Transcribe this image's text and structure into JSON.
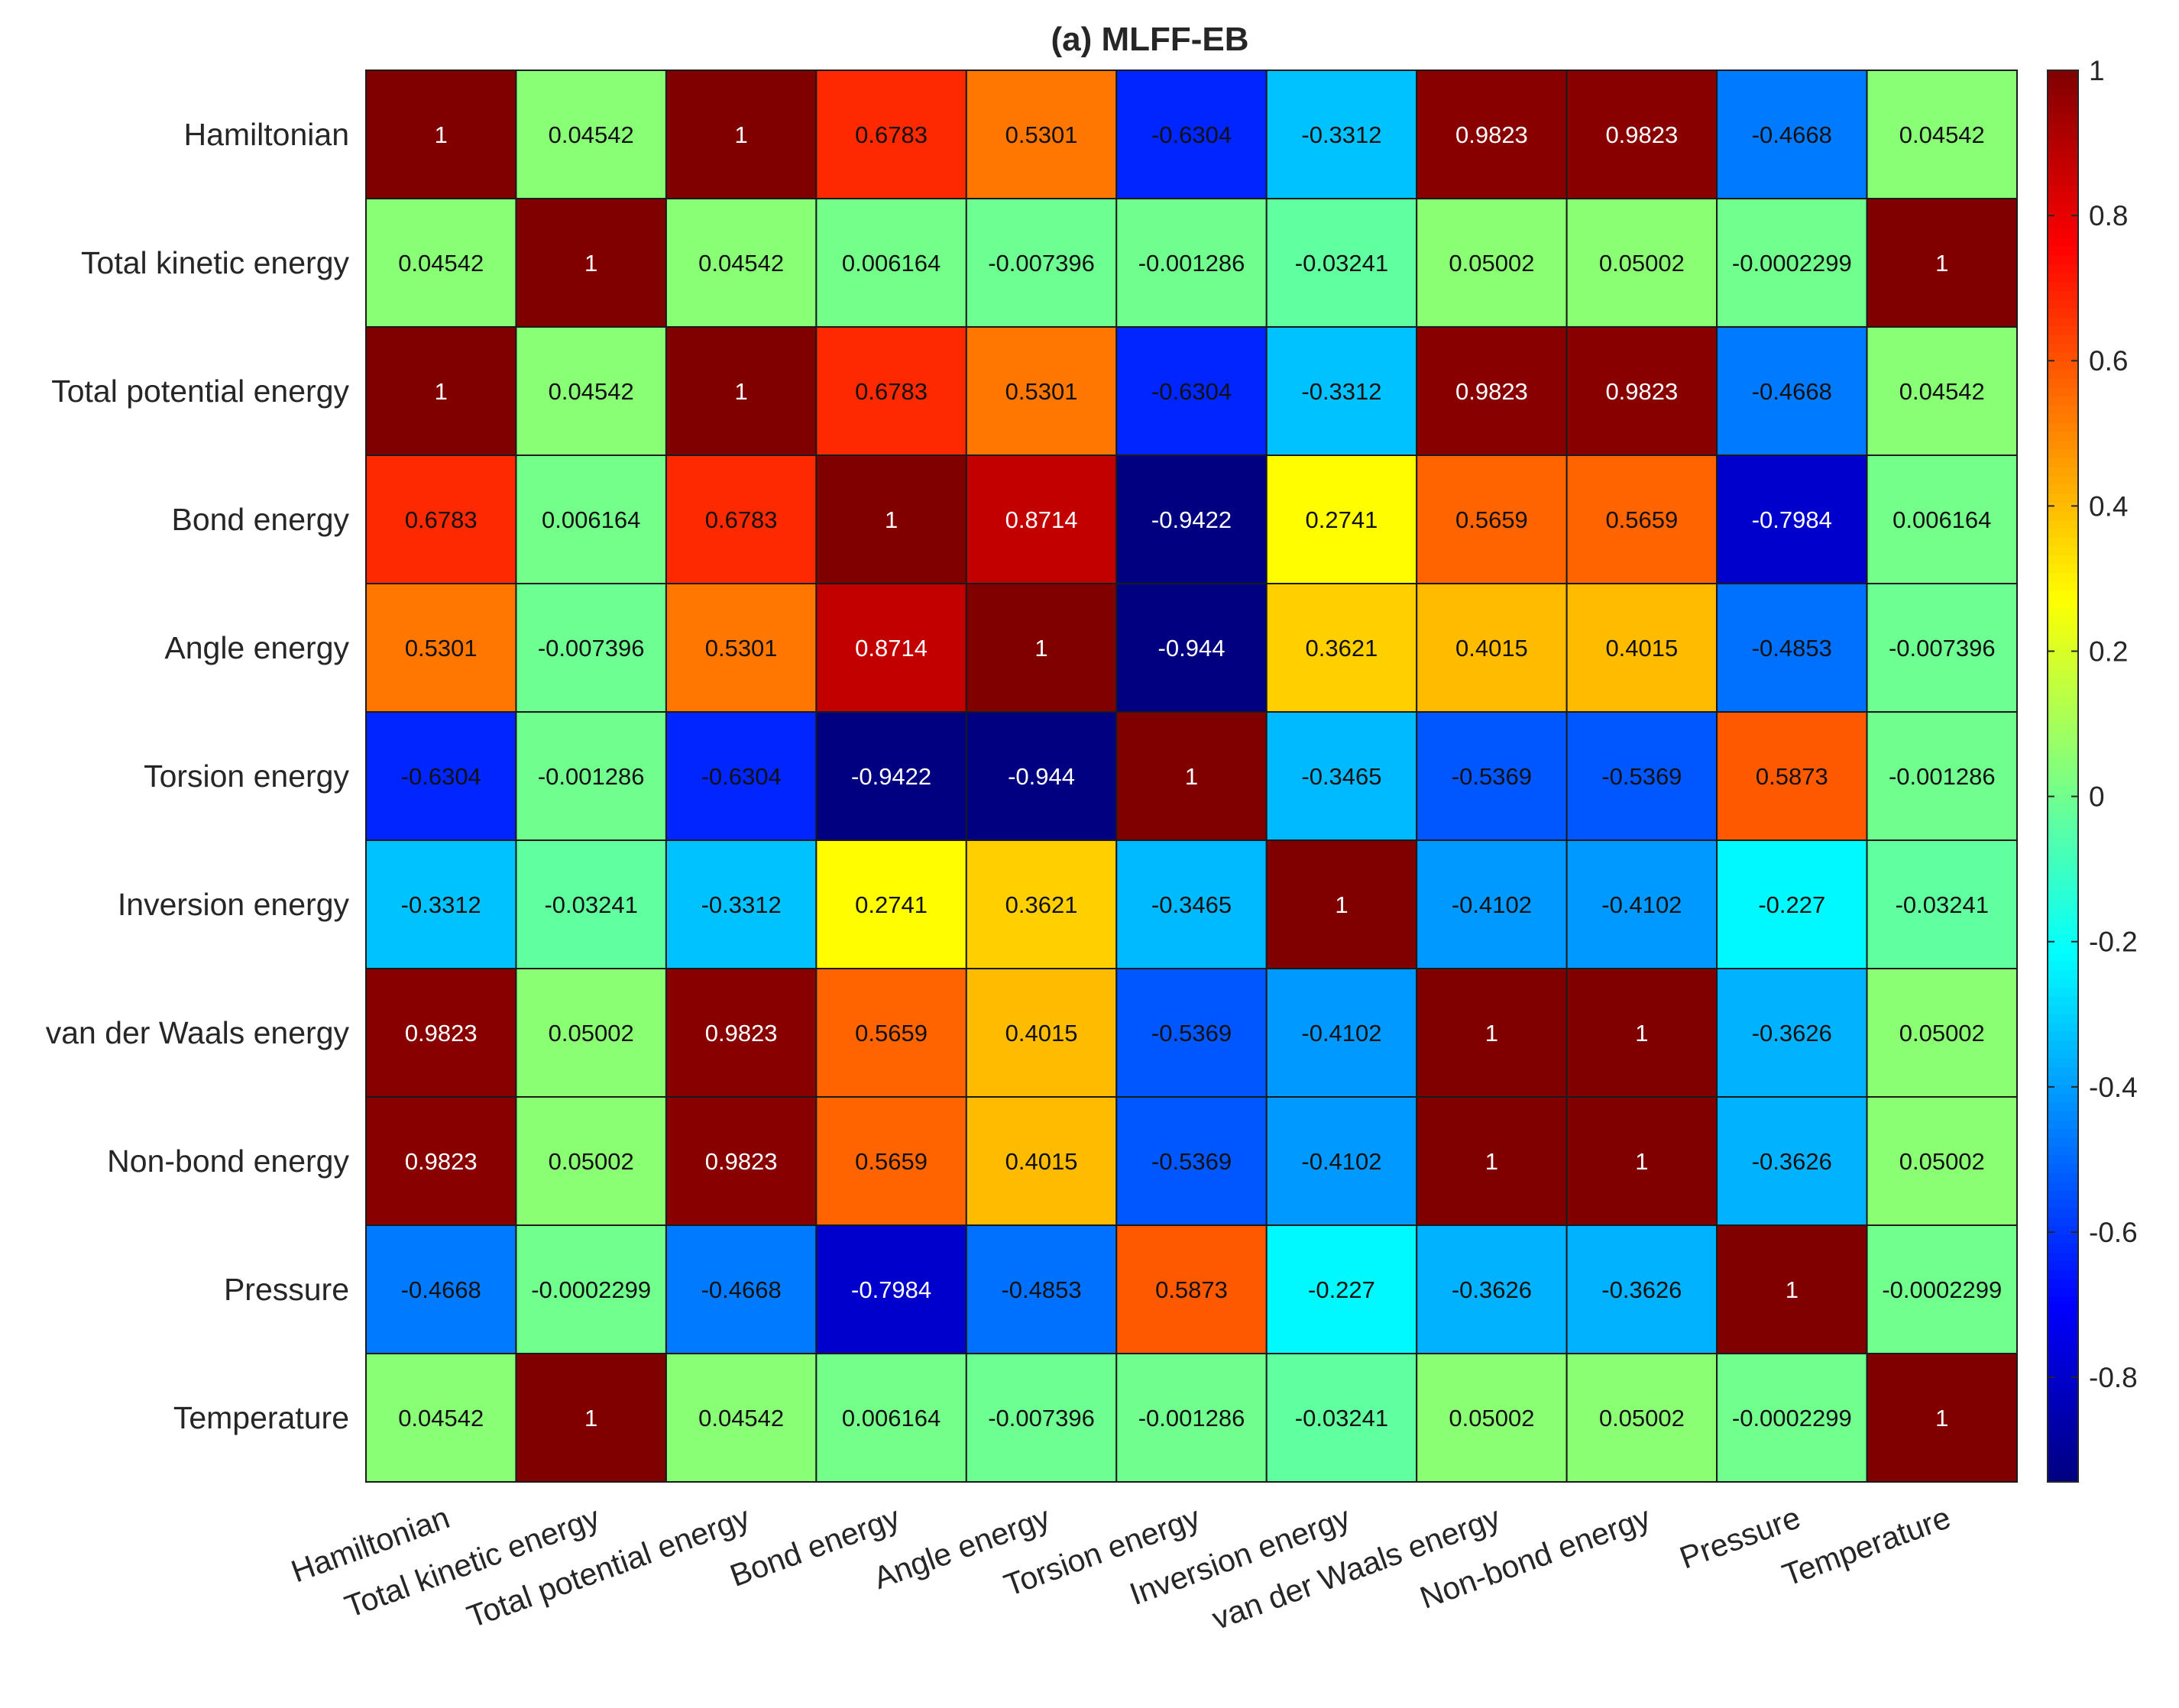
{
  "chart_data": {
    "type": "heatmap",
    "title": "(a) MLFF-EB",
    "rows": [
      "Hamiltonian",
      "Total kinetic energy",
      "Total potential energy",
      "Bond energy",
      "Angle energy",
      "Torsion energy",
      "Inversion energy",
      "van der Waals energy",
      "Non-bond energy",
      "Pressure",
      "Temperature"
    ],
    "columns": [
      "Hamiltonian",
      "Total kinetic energy",
      "Total potential energy",
      "Bond energy",
      "Angle energy",
      "Torsion energy",
      "Inversion energy",
      "van der Waals energy",
      "Non-bond energy",
      "Pressure",
      "Temperature"
    ],
    "values": [
      [
        1,
        0.04542,
        1,
        0.6783,
        0.5301,
        -0.6304,
        -0.3312,
        0.9823,
        0.9823,
        -0.4668,
        0.04542
      ],
      [
        0.04542,
        1,
        0.04542,
        0.006164,
        -0.007396,
        -0.001286,
        -0.03241,
        0.05002,
        0.05002,
        -0.0002299,
        1
      ],
      [
        1,
        0.04542,
        1,
        0.6783,
        0.5301,
        -0.6304,
        -0.3312,
        0.9823,
        0.9823,
        -0.4668,
        0.04542
      ],
      [
        0.6783,
        0.006164,
        0.6783,
        1,
        0.8714,
        -0.9422,
        0.2741,
        0.5659,
        0.5659,
        -0.7984,
        0.006164
      ],
      [
        0.5301,
        -0.007396,
        0.5301,
        0.8714,
        1,
        -0.944,
        0.3621,
        0.4015,
        0.4015,
        -0.4853,
        -0.007396
      ],
      [
        -0.6304,
        -0.001286,
        -0.6304,
        -0.9422,
        -0.944,
        1,
        -0.3465,
        -0.5369,
        -0.5369,
        0.5873,
        -0.001286
      ],
      [
        -0.3312,
        -0.03241,
        -0.3312,
        0.2741,
        0.3621,
        -0.3465,
        1,
        -0.4102,
        -0.4102,
        -0.227,
        -0.03241
      ],
      [
        0.9823,
        0.05002,
        0.9823,
        0.5659,
        0.4015,
        -0.5369,
        -0.4102,
        1,
        1,
        -0.3626,
        0.05002
      ],
      [
        0.9823,
        0.05002,
        0.9823,
        0.5659,
        0.4015,
        -0.5369,
        -0.4102,
        1,
        1,
        -0.3626,
        0.05002
      ],
      [
        -0.4668,
        -0.0002299,
        -0.4668,
        -0.7984,
        -0.4853,
        0.5873,
        -0.227,
        -0.3626,
        -0.3626,
        1,
        -0.0002299
      ],
      [
        0.04542,
        1,
        0.04542,
        0.006164,
        -0.007396,
        -0.001286,
        -0.03241,
        0.05002,
        0.05002,
        -0.0002299,
        1
      ]
    ],
    "labels": [
      [
        "1",
        "0.04542",
        "1",
        "0.6783",
        "0.5301",
        "-0.6304",
        "-0.3312",
        "0.9823",
        "0.9823",
        "-0.4668",
        "0.04542"
      ],
      [
        "0.04542",
        "1",
        "0.04542",
        "0.006164",
        "-0.007396",
        "-0.001286",
        "-0.03241",
        "0.05002",
        "0.05002",
        "-0.0002299",
        "1"
      ],
      [
        "1",
        "0.04542",
        "1",
        "0.6783",
        "0.5301",
        "-0.6304",
        "-0.3312",
        "0.9823",
        "0.9823",
        "-0.4668",
        "0.04542"
      ],
      [
        "0.6783",
        "0.006164",
        "0.6783",
        "1",
        "0.8714",
        "-0.9422",
        "0.2741",
        "0.5659",
        "0.5659",
        "-0.7984",
        "0.006164"
      ],
      [
        "0.5301",
        "-0.007396",
        "0.5301",
        "0.8714",
        "1",
        "-0.944",
        "0.3621",
        "0.4015",
        "0.4015",
        "-0.4853",
        "-0.007396"
      ],
      [
        "-0.6304",
        "-0.001286",
        "-0.6304",
        "-0.9422",
        "-0.944",
        "1",
        "-0.3465",
        "-0.5369",
        "-0.5369",
        "0.5873",
        "-0.001286"
      ],
      [
        "-0.3312",
        "-0.03241",
        "-0.3312",
        "0.2741",
        "0.3621",
        "-0.3465",
        "1",
        "-0.4102",
        "-0.4102",
        "-0.227",
        "-0.03241"
      ],
      [
        "0.9823",
        "0.05002",
        "0.9823",
        "0.5659",
        "0.4015",
        "-0.5369",
        "-0.4102",
        "1",
        "1",
        "-0.3626",
        "0.05002"
      ],
      [
        "0.9823",
        "0.05002",
        "0.9823",
        "0.5659",
        "0.4015",
        "-0.5369",
        "-0.4102",
        "1",
        "1",
        "-0.3626",
        "0.05002"
      ],
      [
        "-0.4668",
        "-0.0002299",
        "-0.4668",
        "-0.7984",
        "-0.4853",
        "0.5873",
        "-0.227",
        "-0.3626",
        "-0.3626",
        "1",
        "-0.0002299"
      ],
      [
        "0.04542",
        "1",
        "0.04542",
        "0.006164",
        "-0.007396",
        "-0.001286",
        "-0.03241",
        "0.05002",
        "0.05002",
        "-0.0002299",
        "1"
      ]
    ],
    "colormap": "jet",
    "color_limits": [
      -0.944,
      1
    ],
    "colorbar": {
      "ticks": [
        1,
        0.8,
        0.6,
        0.4,
        0.2,
        0,
        -0.2,
        -0.4,
        -0.6,
        -0.8
      ],
      "tick_labels": [
        "1",
        "0.8",
        "0.6",
        "0.4",
        "0.2",
        "0",
        "-0.2",
        "-0.4",
        "-0.6",
        "-0.8"
      ],
      "location": "right"
    },
    "grid": true,
    "xlabel_rotation_deg": 20
  }
}
